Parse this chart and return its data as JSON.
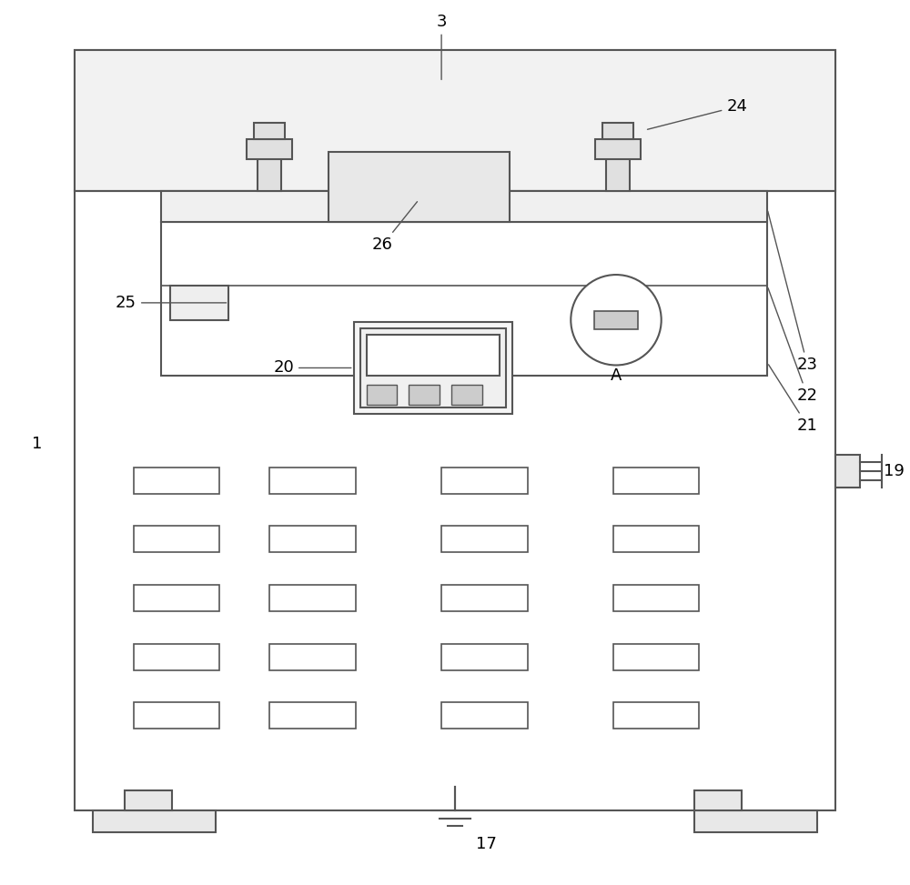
{
  "bg": "#ffffff",
  "lc": "#555555",
  "lw": 1.5,
  "figsize": [
    10.0,
    9.73
  ]
}
